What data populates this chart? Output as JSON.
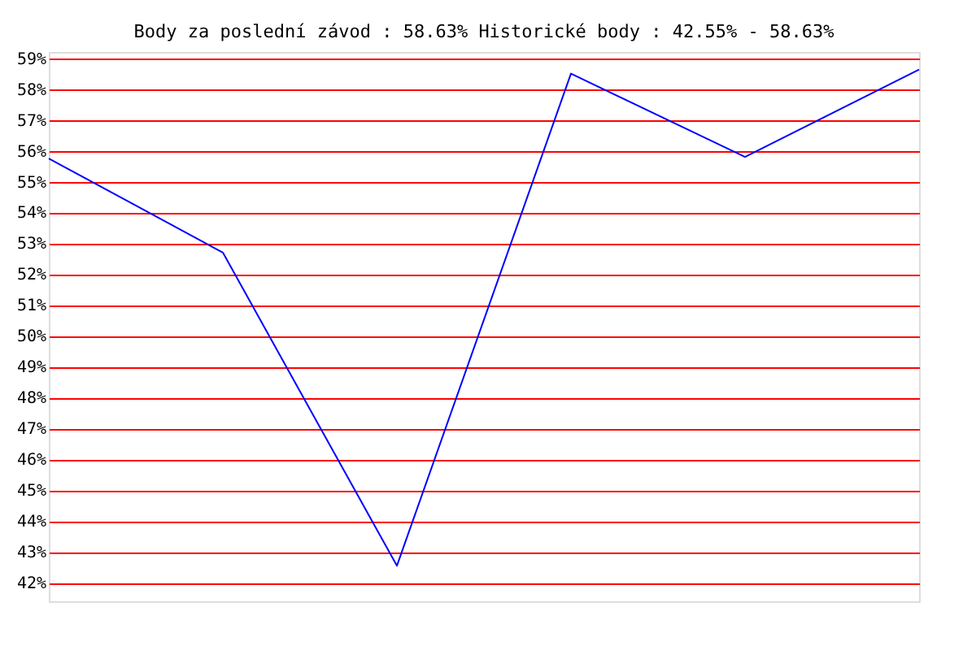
{
  "chart_data": {
    "type": "line",
    "title": "Body za poslední závod : 58.63%  Historické body : 42.55% - 58.63%",
    "categories": [
      null,
      null,
      null,
      null,
      null,
      null
    ],
    "series": [
      {
        "color": "#0000ff",
        "values": [
          55.75,
          52.7,
          42.55,
          58.5,
          55.8,
          58.63
        ]
      }
    ],
    "ylim": [
      41.4,
      59.2
    ],
    "yticks": [
      {
        "value": 42,
        "label": "42%"
      },
      {
        "value": 43,
        "label": "43%"
      },
      {
        "value": 44,
        "label": "44%"
      },
      {
        "value": 45,
        "label": "45%"
      },
      {
        "value": 46,
        "label": "46%"
      },
      {
        "value": 47,
        "label": "47%"
      },
      {
        "value": 48,
        "label": "48%"
      },
      {
        "value": 49,
        "label": "49%"
      },
      {
        "value": 50,
        "label": "50%"
      },
      {
        "value": 51,
        "label": "51%"
      },
      {
        "value": 52,
        "label": "52%"
      },
      {
        "value": 53,
        "label": "53%"
      },
      {
        "value": 54,
        "label": "54%"
      },
      {
        "value": 55,
        "label": "55%"
      },
      {
        "value": 56,
        "label": "56%"
      },
      {
        "value": 57,
        "label": "57%"
      },
      {
        "value": 58,
        "label": "58%"
      },
      {
        "value": 59,
        "label": "59%"
      }
    ],
    "grid": "y",
    "tick_labels": "y",
    "marker": "none",
    "line_style": "solid"
  }
}
